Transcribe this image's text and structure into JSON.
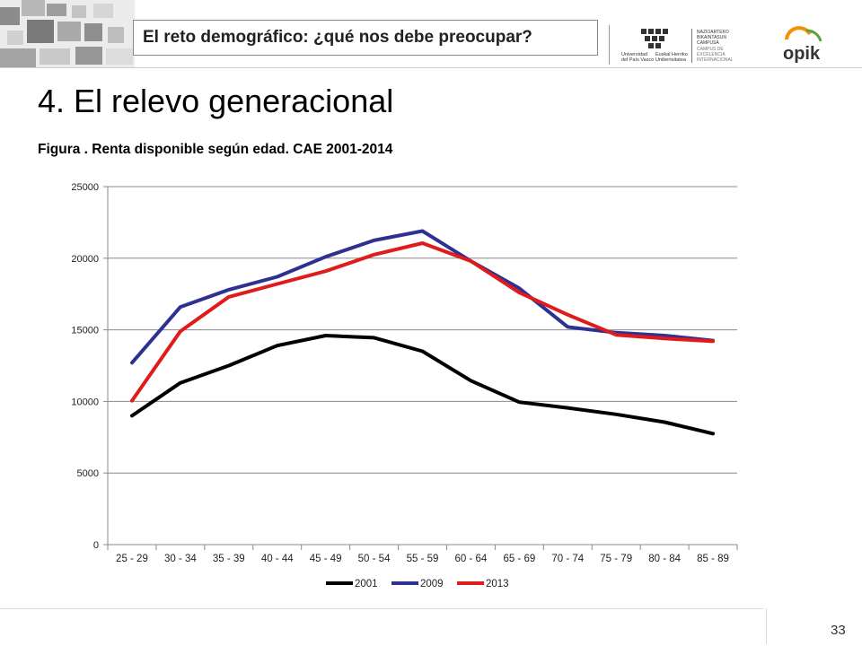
{
  "header": {
    "title": "El reto demográfico: ¿qué nos debe preocupar?",
    "upv_lines": [
      "Universidad",
      "del País Vasco"
    ],
    "ehu_lines": [
      "Euskal Herriko",
      "Unibertsitatea"
    ],
    "campus_lines": [
      "NAZIOARTEKO",
      "BIKAINTASUN",
      "CAMPUSA",
      "CAMPUS DE",
      "EXCELENCIA",
      "INTERNACIONAL"
    ],
    "opik_label": "opik"
  },
  "slide": {
    "title": "4. El relevo generacional",
    "figure_title": "Figura . Renta disponible según edad. CAE 2001-2014",
    "page_number": "33"
  },
  "colors": {
    "series_2001": "#000000",
    "series_2009": "#2E3192",
    "series_2013": "#E01B1B",
    "opik_orange": "#F39200",
    "opik_green": "#5CA33A"
  },
  "chart_data": {
    "type": "line",
    "title": "",
    "xlabel": "",
    "ylabel": "",
    "ylim": [
      0,
      25000
    ],
    "yticks": [
      0,
      5000,
      10000,
      15000,
      20000,
      25000
    ],
    "grid": true,
    "legend_position": "bottom",
    "categories": [
      "25 - 29",
      "30 - 34",
      "35 - 39",
      "40 - 44",
      "45 - 49",
      "50 - 54",
      "55 - 59",
      "60 - 64",
      "65 - 69",
      "70 - 74",
      "75 - 79",
      "80 - 84",
      "85 - 89"
    ],
    "series": [
      {
        "name": "2001",
        "color": "#000000",
        "values": [
          9000,
          11300,
          12500,
          13900,
          14600,
          14450,
          13500,
          11450,
          9950,
          9550,
          9100,
          8550,
          7750
        ]
      },
      {
        "name": "2009",
        "color": "#2E3192",
        "values": [
          12700,
          16600,
          17800,
          18700,
          20100,
          21250,
          21900,
          19800,
          17900,
          15200,
          14800,
          14600,
          14250
        ]
      },
      {
        "name": "2013",
        "color": "#E01B1B",
        "values": [
          10050,
          14900,
          17300,
          18200,
          19100,
          20250,
          21050,
          19800,
          17600,
          16050,
          14650,
          14400,
          14200
        ]
      }
    ]
  }
}
